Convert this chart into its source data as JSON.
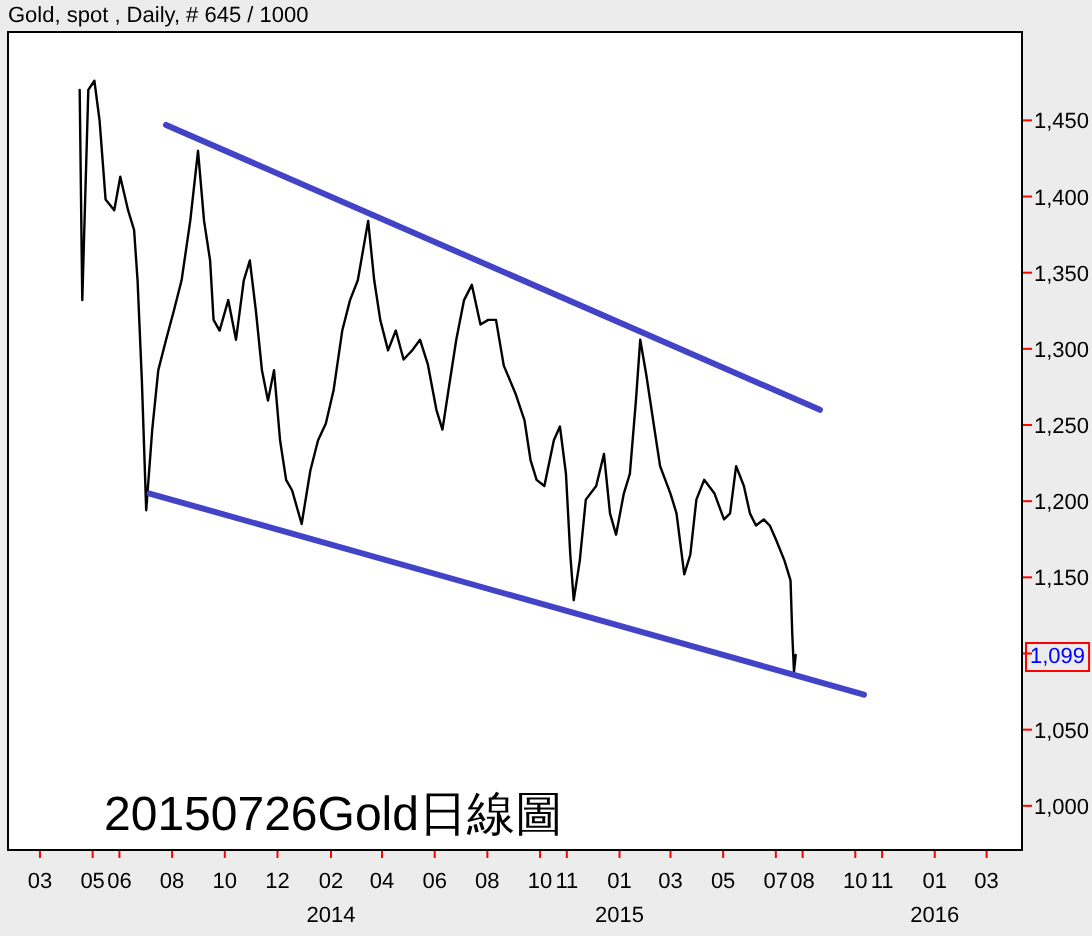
{
  "chart_data": {
    "type": "line",
    "title": "Gold, spot , Daily, # 645 / 1000",
    "xlim": [
      "2013-01-23",
      "2016-04-11"
    ],
    "ylim": [
      971,
      1508
    ],
    "xticks": [
      {
        "value": "2013-03-01",
        "label": "03"
      },
      {
        "value": "2013-05-01",
        "label": "05"
      },
      {
        "value": "2013-06-01",
        "label": "06"
      },
      {
        "value": "2013-08-01",
        "label": "08"
      },
      {
        "value": "2013-10-01",
        "label": "10"
      },
      {
        "value": "2013-12-01",
        "label": "12"
      },
      {
        "value": "2014-02-01",
        "label": "02"
      },
      {
        "value": "2014-04-01",
        "label": "04"
      },
      {
        "value": "2014-06-01",
        "label": "06"
      },
      {
        "value": "2014-08-01",
        "label": "08"
      },
      {
        "value": "2014-10-01",
        "label": "10"
      },
      {
        "value": "2014-11-01",
        "label": "11"
      },
      {
        "value": "2015-01-01",
        "label": "01"
      },
      {
        "value": "2015-03-01",
        "label": "03"
      },
      {
        "value": "2015-05-01",
        "label": "05"
      },
      {
        "value": "2015-07-01",
        "label": "07"
      },
      {
        "value": "2015-08-01",
        "label": "08"
      },
      {
        "value": "2015-10-01",
        "label": "10"
      },
      {
        "value": "2015-11-01",
        "label": "11"
      },
      {
        "value": "2016-01-01",
        "label": "01"
      },
      {
        "value": "2016-03-01",
        "label": "03"
      }
    ],
    "x2lim": [
      "2013-01-23",
      "2016-04-11"
    ],
    "x2ticks": [
      {
        "value": "2014-02-01",
        "label": "2014"
      },
      {
        "value": "2015-01-01",
        "label": "2015"
      },
      {
        "value": "2016-01-01",
        "label": "2016"
      }
    ],
    "yticks": [
      {
        "value": 1000,
        "label": "1,000"
      },
      {
        "value": 1050,
        "label": "1,050"
      },
      {
        "value": 1100,
        "label": null
      },
      {
        "value": 1150,
        "label": "1,150"
      },
      {
        "value": 1200,
        "label": "1,200"
      },
      {
        "value": 1250,
        "label": "1,250"
      },
      {
        "value": 1300,
        "label": "1,300"
      },
      {
        "value": 1350,
        "label": "1,350"
      },
      {
        "value": 1400,
        "label": "1,400"
      },
      {
        "value": 1450,
        "label": "1,450"
      }
    ],
    "series": [
      {
        "color": "#000000",
        "x": [
          "2013-04-16",
          "2013-04-19",
          "2013-04-26",
          "2013-05-03",
          "2013-05-09",
          "2013-05-16",
          "2013-05-26",
          "2013-06-02",
          "2013-06-11",
          "2013-06-18",
          "2013-06-22",
          "2013-06-27",
          "2013-07-02",
          "2013-07-09",
          "2013-07-16",
          "2013-07-25",
          "2013-08-03",
          "2013-08-12",
          "2013-08-22",
          "2013-08-31",
          "2013-09-07",
          "2013-09-14",
          "2013-09-18",
          "2013-09-25",
          "2013-10-05",
          "2013-10-14",
          "2013-10-23",
          "2013-10-30",
          "2013-11-06",
          "2013-11-13",
          "2013-11-20",
          "2013-11-27",
          "2013-12-04",
          "2013-12-11",
          "2013-12-18",
          "2013-12-29",
          "2014-01-08",
          "2014-01-17",
          "2014-01-26",
          "2014-02-04",
          "2014-02-14",
          "2014-02-23",
          "2014-03-04",
          "2014-03-16",
          "2014-03-23",
          "2014-03-30",
          "2014-04-08",
          "2014-04-17",
          "2014-04-26",
          "2014-05-06",
          "2014-05-15",
          "2014-05-24",
          "2014-06-03",
          "2014-06-10",
          "2014-06-17",
          "2014-06-26",
          "2014-07-05",
          "2014-07-14",
          "2014-07-24",
          "2014-08-02",
          "2014-08-11",
          "2014-08-20",
          "2014-09-03",
          "2014-09-13",
          "2014-09-20",
          "2014-09-27",
          "2014-10-06",
          "2014-10-17",
          "2014-10-24",
          "2014-10-31",
          "2014-11-05",
          "2014-11-09",
          "2014-11-16",
          "2014-11-23",
          "2014-12-05",
          "2014-12-14",
          "2014-12-21",
          "2014-12-28",
          "2015-01-06",
          "2015-01-13",
          "2015-01-20",
          "2015-01-25",
          "2015-02-01",
          "2015-02-10",
          "2015-02-17",
          "2015-03-01",
          "2015-03-08",
          "2015-03-17",
          "2015-03-24",
          "2015-03-31",
          "2015-04-09",
          "2015-04-21",
          "2015-05-02",
          "2015-05-09",
          "2015-05-16",
          "2015-05-25",
          "2015-06-01",
          "2015-06-08",
          "2015-06-17",
          "2015-06-24",
          "2015-07-01",
          "2015-07-11",
          "2015-07-18",
          "2015-07-20",
          "2015-07-22",
          "2015-07-24"
        ],
        "values": [
          1470,
          1332,
          1470,
          1476,
          1450,
          1398,
          1391,
          1413,
          1391,
          1378,
          1345,
          1279,
          1194,
          1247,
          1286,
          1306,
          1325,
          1345,
          1384,
          1430,
          1384,
          1358,
          1319,
          1312,
          1332,
          1306,
          1345,
          1358,
          1325,
          1286,
          1266,
          1286,
          1240,
          1214,
          1207,
          1185,
          1220,
          1240,
          1251,
          1273,
          1312,
          1332,
          1345,
          1384,
          1345,
          1319,
          1299,
          1312,
          1293,
          1299,
          1306,
          1290,
          1260,
          1247,
          1273,
          1306,
          1332,
          1342,
          1316,
          1319,
          1319,
          1289,
          1270,
          1253,
          1227,
          1214,
          1210,
          1240,
          1249,
          1218,
          1165,
          1135,
          1161,
          1201,
          1210,
          1231,
          1192,
          1178,
          1205,
          1218,
          1266,
          1306,
          1283,
          1249,
          1223,
          1205,
          1192,
          1152,
          1165,
          1201,
          1214,
          1205,
          1188,
          1192,
          1223,
          1210,
          1192,
          1184,
          1188,
          1184,
          1175,
          1161,
          1148,
          1113,
          1088,
          1099
        ]
      },
      {
        "color": "#4343c8",
        "x": [
          "2013-07-25",
          "2015-08-21"
        ],
        "values": [
          1447,
          1260
        ]
      },
      {
        "color": "#4343c8",
        "x": [
          "2013-07-06",
          "2015-10-11"
        ],
        "values": [
          1205,
          1073
        ]
      }
    ],
    "annotations": [
      "20150726Gold日線圖",
      {
        "text": "1,099",
        "y": 1099
      }
    ]
  }
}
